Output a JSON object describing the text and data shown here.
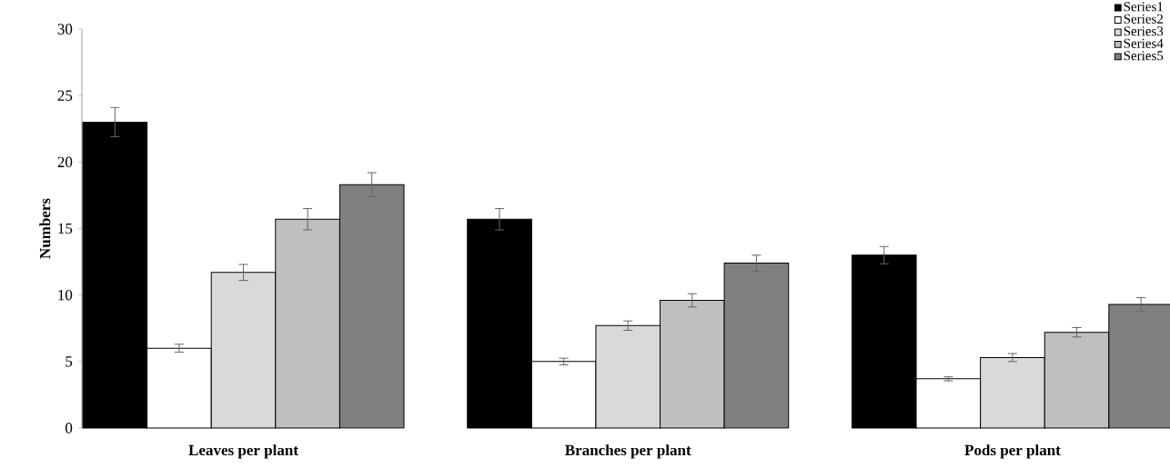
{
  "chart_data": {
    "type": "bar",
    "ylabel": "Numbers",
    "categories": [
      "Leaves per plant",
      "Branches per plant",
      "Pods per plant"
    ],
    "series": [
      {
        "name": "Series1",
        "color": "#000000",
        "values": [
          23.0,
          15.7,
          13.0
        ],
        "errors": [
          1.1,
          0.8,
          0.65
        ]
      },
      {
        "name": "Series2",
        "color": "#ffffff",
        "values": [
          6.0,
          5.0,
          3.7
        ],
        "errors": [
          0.3,
          0.25,
          0.15
        ]
      },
      {
        "name": "Series3",
        "color": "#d9d9d9",
        "values": [
          11.7,
          7.7,
          5.3
        ],
        "errors": [
          0.6,
          0.35,
          0.3
        ]
      },
      {
        "name": "Series4",
        "color": "#bfbfbf",
        "values": [
          15.7,
          9.6,
          7.2
        ],
        "errors": [
          0.8,
          0.5,
          0.35
        ]
      },
      {
        "name": "Series5",
        "color": "#808080",
        "values": [
          18.3,
          12.4,
          9.3
        ],
        "errors": [
          0.9,
          0.6,
          0.5
        ]
      }
    ],
    "ylim": [
      0,
      30
    ],
    "yticks": [
      0,
      5,
      10,
      15,
      20,
      25,
      30
    ],
    "legend": "top right"
  }
}
